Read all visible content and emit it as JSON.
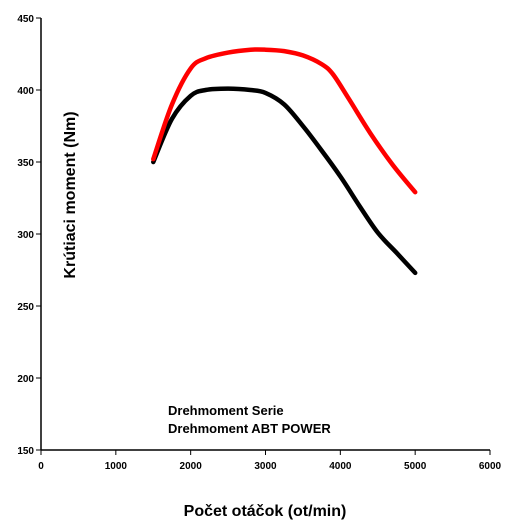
{
  "chart_data": {
    "type": "line",
    "title": "",
    "xlabel": "Počet otáčok  (ot/min)",
    "ylabel": "Krútiaci moment  (Nm)",
    "xlim": [
      0,
      6000
    ],
    "ylim": [
      150,
      450
    ],
    "xticks": [
      "0",
      "1000",
      "2000",
      "3000",
      "4000",
      "5000",
      "6000"
    ],
    "yticks": [
      "450",
      "400",
      "350",
      "300",
      "250",
      "200",
      "150"
    ],
    "grid": false,
    "legend_position": "bottom-center",
    "series": [
      {
        "name": "Drehmoment Serie",
        "color": "#000000",
        "points": [
          [
            1500,
            350
          ],
          [
            1750,
            380
          ],
          [
            2000,
            396
          ],
          [
            2200,
            400
          ],
          [
            2500,
            401
          ],
          [
            2800,
            400
          ],
          [
            3000,
            398
          ],
          [
            3250,
            390
          ],
          [
            3500,
            375
          ],
          [
            3750,
            358
          ],
          [
            4000,
            340
          ],
          [
            4250,
            320
          ],
          [
            4500,
            301
          ],
          [
            4750,
            287
          ],
          [
            5000,
            273
          ]
        ]
      },
      {
        "name": "Drehmoment ABT POWER",
        "color": "#ff0000",
        "points": [
          [
            1500,
            352
          ],
          [
            1750,
            390
          ],
          [
            2000,
            415
          ],
          [
            2200,
            422
          ],
          [
            2500,
            426
          ],
          [
            2800,
            428
          ],
          [
            3000,
            428
          ],
          [
            3250,
            427
          ],
          [
            3500,
            424
          ],
          [
            3750,
            418
          ],
          [
            3900,
            411
          ],
          [
            4100,
            395
          ],
          [
            4400,
            370
          ],
          [
            4700,
            348
          ],
          [
            5000,
            329
          ]
        ]
      }
    ]
  }
}
